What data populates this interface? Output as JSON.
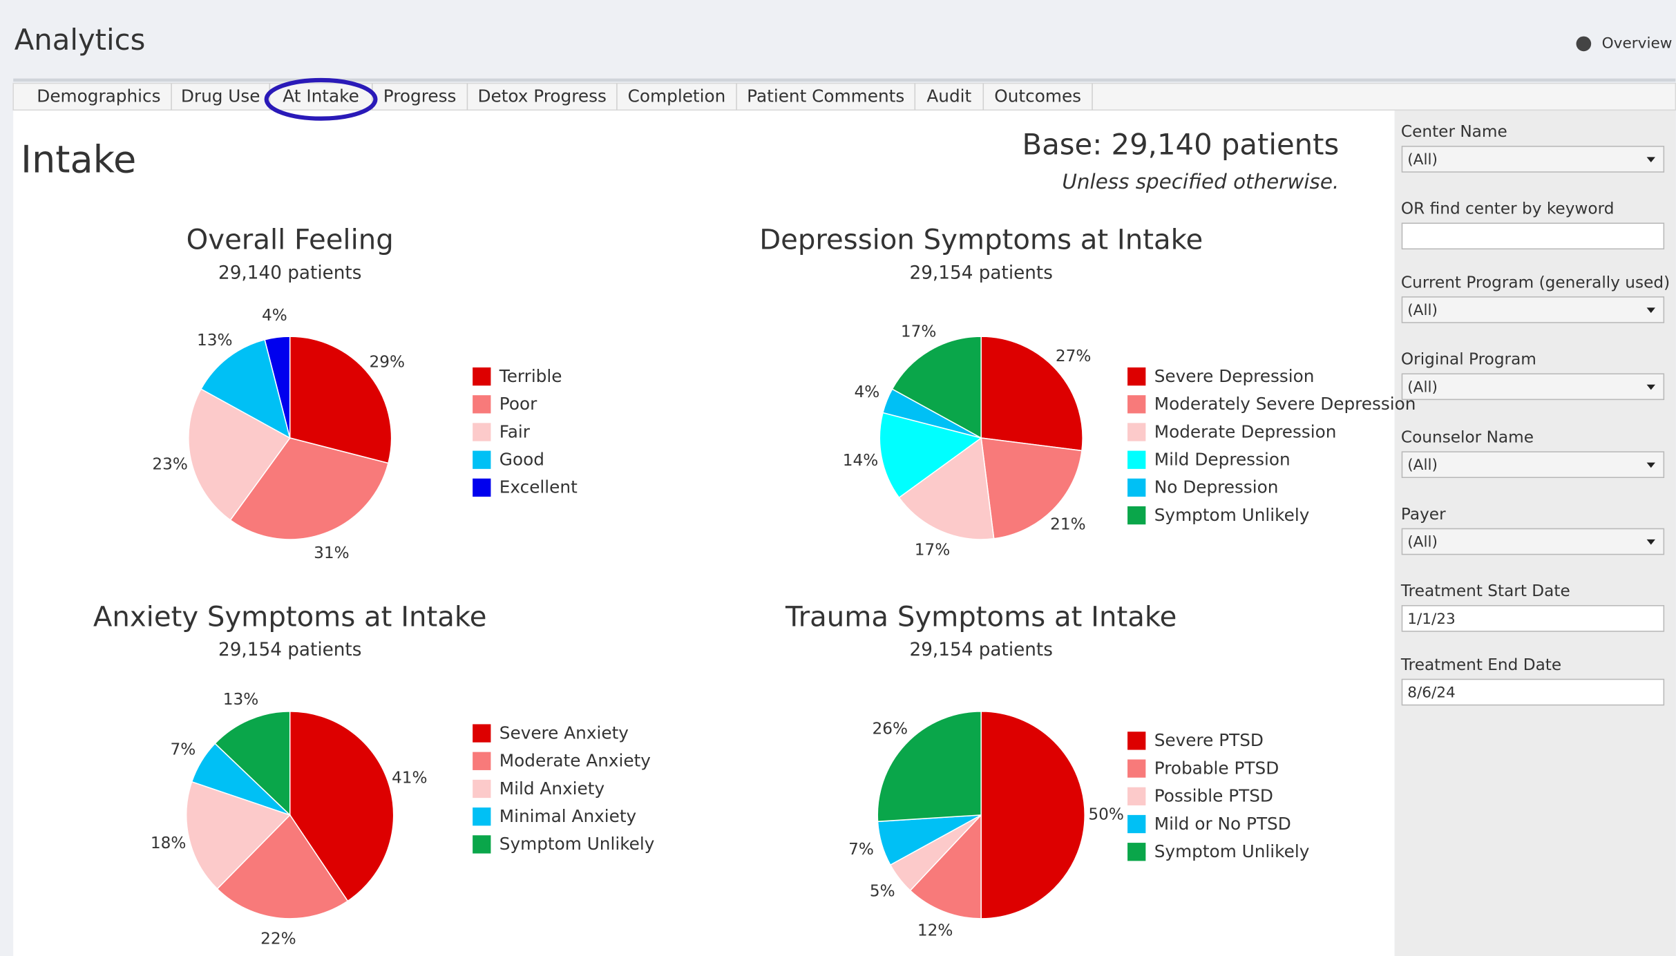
{
  "header": {
    "title": "Analytics",
    "overview": "Overview"
  },
  "tabs": [
    "Demographics",
    "Drug Use",
    "At Intake",
    "Progress",
    "Detox Progress",
    "Completion",
    "Patient Comments",
    "Audit",
    "Outcomes"
  ],
  "section": {
    "title": "Intake",
    "base": "Base: 29,140 patients",
    "note": "Unless specified otherwise."
  },
  "chart_data": [
    {
      "type": "pie",
      "title": "Overall Feeling",
      "subtitle": "29,140 patients",
      "categories": [
        "Terrible",
        "Poor",
        "Fair",
        "Good",
        "Excellent"
      ],
      "values": [
        29,
        31,
        23,
        13,
        4
      ],
      "value_labels": [
        "29%",
        "31%",
        "23%",
        "13%",
        "4%"
      ],
      "colors": [
        "#dd0000",
        "#f87a7a",
        "#fccaca",
        "#00c0f5",
        "#0000ee"
      ]
    },
    {
      "type": "pie",
      "title": "Depression Symptoms at Intake",
      "subtitle": "29,154 patients",
      "categories": [
        "Severe Depression",
        "Moderately Severe Depression",
        "Moderate Depression",
        "Mild Depression",
        "No Depression",
        "Symptom Unlikely"
      ],
      "values": [
        27,
        21,
        17,
        14,
        4,
        17
      ],
      "value_labels": [
        "27%",
        "21%",
        "17%",
        "14%",
        "4%",
        "17%"
      ],
      "colors": [
        "#dd0000",
        "#f87a7a",
        "#fccaca",
        "#00ffff",
        "#00c0f5",
        "#0aa64a"
      ]
    },
    {
      "type": "pie",
      "title": "Anxiety Symptoms at Intake",
      "subtitle": "29,154 patients",
      "categories": [
        "Severe Anxiety",
        "Moderate Anxiety",
        "Mild Anxiety",
        "Minimal Anxiety",
        "Symptom Unlikely"
      ],
      "values": [
        41,
        22,
        18,
        7,
        13
      ],
      "value_labels": [
        "41%",
        "22%",
        "18%",
        "7%",
        "13%"
      ],
      "colors": [
        "#dd0000",
        "#f87a7a",
        "#fccaca",
        "#00c0f5",
        "#0aa64a"
      ]
    },
    {
      "type": "pie",
      "title": "Trauma Symptoms at Intake",
      "subtitle": "29,154 patients",
      "categories": [
        "Severe PTSD",
        "Probable PTSD",
        "Possible PTSD",
        "Mild or No PTSD",
        "Symptom Unlikely"
      ],
      "values": [
        50,
        12,
        5,
        7,
        26
      ],
      "value_labels": [
        "50%",
        "12%",
        "5%",
        "7%",
        "26%"
      ],
      "colors": [
        "#dd0000",
        "#f87a7a",
        "#fccaca",
        "#00c0f5",
        "#0aa64a"
      ]
    }
  ],
  "filters": [
    {
      "label": "Center Name",
      "value": "(All)",
      "kind": "select"
    },
    {
      "label": "OR find center by keyword",
      "kind": "text"
    },
    {
      "label": "Current Program (generally used)",
      "value": "(All)",
      "kind": "select"
    },
    {
      "label": "Original Program",
      "value": "(All)",
      "kind": "select"
    },
    {
      "label": "Counselor Name",
      "value": "(All)",
      "kind": "select"
    },
    {
      "label": "Payer",
      "value": "(All)",
      "kind": "select"
    },
    {
      "label": "Treatment Start Date",
      "value": "1/1/23",
      "kind": "text"
    },
    {
      "label": "Treatment End Date",
      "value": "8/6/24",
      "kind": "text"
    }
  ]
}
